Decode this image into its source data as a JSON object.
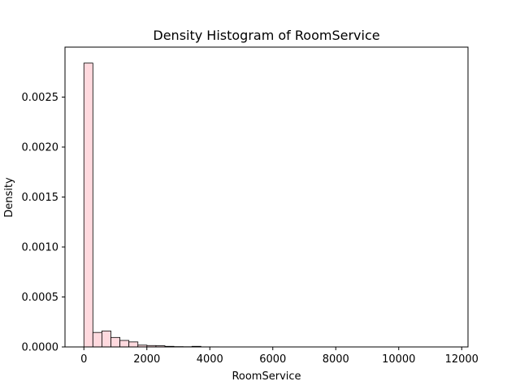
{
  "chart_data": {
    "type": "bar",
    "title": "Density Histogram of RoomService",
    "xlabel": "RoomService",
    "ylabel": "Density",
    "xlim": [
      -600,
      12200
    ],
    "ylim": [
      0,
      0.003
    ],
    "x_ticks": [
      0,
      2000,
      4000,
      6000,
      8000,
      10000,
      12000
    ],
    "x_tick_labels": [
      "0",
      "2000",
      "4000",
      "6000",
      "8000",
      "10000",
      "12000"
    ],
    "y_ticks": [
      0.0,
      0.0005,
      0.001,
      0.0015,
      0.002,
      0.0025
    ],
    "y_tick_labels": [
      "0.0000",
      "0.0005",
      "0.0010",
      "0.0015",
      "0.0020",
      "0.0025"
    ],
    "grid": false,
    "bar_color": "#ffd9de",
    "edge_color": "#000000",
    "bins": [
      {
        "x0": 0,
        "x1": 286,
        "density": 0.00284
      },
      {
        "x0": 286,
        "x1": 572,
        "density": 0.000145
      },
      {
        "x0": 572,
        "x1": 858,
        "density": 0.00016
      },
      {
        "x0": 858,
        "x1": 1144,
        "density": 9.5e-05
      },
      {
        "x0": 1144,
        "x1": 1430,
        "density": 6.5e-05
      },
      {
        "x0": 1430,
        "x1": 1716,
        "density": 5e-05
      },
      {
        "x0": 1716,
        "x1": 2002,
        "density": 1.8e-05
      },
      {
        "x0": 2002,
        "x1": 2288,
        "density": 1.4e-05
      },
      {
        "x0": 2288,
        "x1": 2574,
        "density": 1.2e-05
      },
      {
        "x0": 2574,
        "x1": 2860,
        "density": 6e-06
      },
      {
        "x0": 2860,
        "x1": 3146,
        "density": 3e-06
      },
      {
        "x0": 3146,
        "x1": 3432,
        "density": 2e-06
      },
      {
        "x0": 3432,
        "x1": 3718,
        "density": 6e-06
      },
      {
        "x0": 3718,
        "x1": 4004,
        "density": 1e-06
      },
      {
        "x0": 4004,
        "x1": 4290,
        "density": 1e-06
      },
      {
        "x0": 4290,
        "x1": 4576,
        "density": 5e-07
      },
      {
        "x0": 4576,
        "x1": 4862,
        "density": 5e-07
      },
      {
        "x0": 4862,
        "x1": 5148,
        "density": 3e-07
      },
      {
        "x0": 5148,
        "x1": 5434,
        "density": 3e-07
      },
      {
        "x0": 5434,
        "x1": 5720,
        "density": 2e-07
      },
      {
        "x0": 5720,
        "x1": 6006,
        "density": 2e-07
      },
      {
        "x0": 6006,
        "x1": 6292,
        "density": 1e-07
      },
      {
        "x0": 6292,
        "x1": 6578,
        "density": 1e-07
      },
      {
        "x0": 6578,
        "x1": 6864,
        "density": 1e-07
      },
      {
        "x0": 6864,
        "x1": 7150,
        "density": 1e-07
      },
      {
        "x0": 7150,
        "x1": 7436,
        "density": 1e-07
      },
      {
        "x0": 7436,
        "x1": 7722,
        "density": 1e-07
      },
      {
        "x0": 7722,
        "x1": 8008,
        "density": 1e-07
      },
      {
        "x0": 8008,
        "x1": 8294,
        "density": 1e-07
      },
      {
        "x0": 8294,
        "x1": 8580,
        "density": 1e-07
      },
      {
        "x0": 8580,
        "x1": 8866,
        "density": 1e-07
      },
      {
        "x0": 8866,
        "x1": 9152,
        "density": 1e-07
      },
      {
        "x0": 9152,
        "x1": 9438,
        "density": 1e-07
      },
      {
        "x0": 9438,
        "x1": 9724,
        "density": 1e-07
      },
      {
        "x0": 9724,
        "x1": 10010,
        "density": 1e-07
      },
      {
        "x0": 10010,
        "x1": 10296,
        "density": 1e-07
      },
      {
        "x0": 10296,
        "x1": 10582,
        "density": 1e-07
      },
      {
        "x0": 10582,
        "x1": 10868,
        "density": 1e-07
      },
      {
        "x0": 10868,
        "x1": 11154,
        "density": 1e-07
      },
      {
        "x0": 11154,
        "x1": 11440,
        "density": 1e-07
      }
    ]
  }
}
